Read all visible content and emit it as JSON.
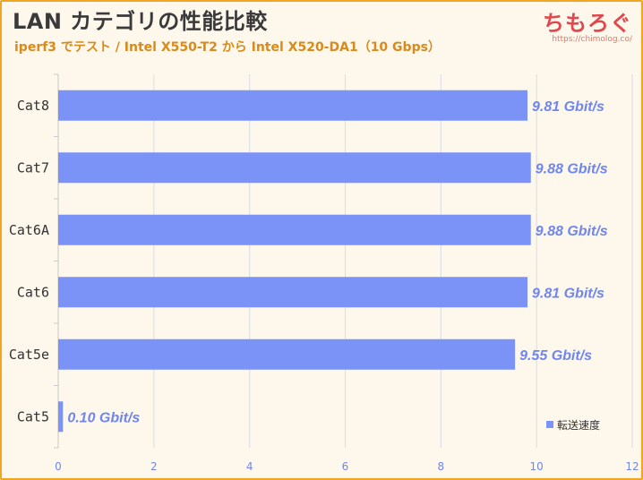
{
  "header": {
    "title": "LAN カテゴリの性能比較",
    "subtitle": "iperf3 でテスト / Intel X550-T2 から Intel X520-DA1（10 Gbps）"
  },
  "logo": {
    "mark": "ちもろぐ",
    "url": "https://chimolog.co/"
  },
  "colors": {
    "bar": "#7b93f7",
    "border": "#f0a623",
    "grid": "#d9dde8",
    "background": "#fdf7ec"
  },
  "chart_data": {
    "type": "bar",
    "orientation": "horizontal",
    "categories": [
      "Cat8",
      "Cat7",
      "Cat6A",
      "Cat6",
      "Cat5e",
      "Cat5"
    ],
    "series": [
      {
        "name": "転送速度",
        "values": [
          9.81,
          9.88,
          9.88,
          9.81,
          9.55,
          0.1
        ],
        "labels": [
          "9.81 Gbit/s",
          "9.88 Gbit/s",
          "9.88 Gbit/s",
          "9.81 Gbit/s",
          "9.55 Gbit/s",
          "0.10 Gbit/s"
        ]
      }
    ],
    "xlim": [
      0,
      12
    ],
    "xticks": [
      0,
      2,
      4,
      6,
      8,
      10,
      12
    ],
    "grid": true,
    "legend_position": "bottom-right"
  }
}
